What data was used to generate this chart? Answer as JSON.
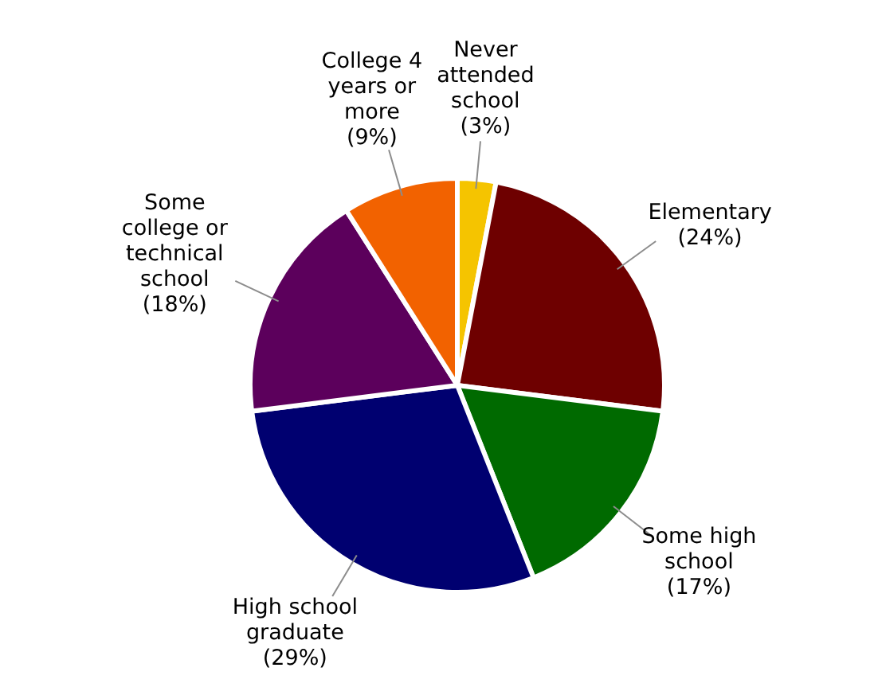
{
  "chart_data": {
    "type": "pie",
    "categories": [
      "Never attended school",
      "Elementary",
      "Some high school",
      "High school graduate",
      "Some college or technical school",
      "College 4 years or more"
    ],
    "values": [
      3,
      24,
      17,
      29,
      18,
      9
    ],
    "colors": [
      "#f5c400",
      "#6e0000",
      "#006a00",
      "#000070",
      "#5c005c",
      "#f26200"
    ],
    "value_labels": [
      "(3%)",
      "(24%)",
      "(17%)",
      "(29%)",
      "(18%)",
      "(9%)"
    ]
  }
}
